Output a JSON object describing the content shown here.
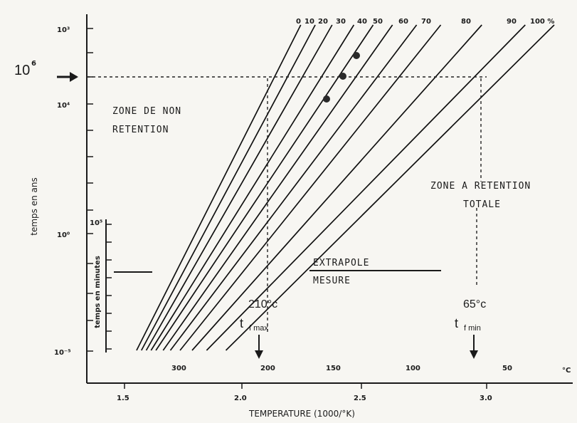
{
  "chart_data": {
    "type": "line",
    "x_axis": {
      "label": "TEMPERATURE (1000/°K)",
      "ticks": [
        "1.5",
        "2.0",
        "2.5",
        "3.0"
      ],
      "range": [
        1.4,
        3.3
      ]
    },
    "x_axis_top_scale": {
      "unit": "°C",
      "ticks": [
        "300",
        "200",
        "150",
        "100",
        "50"
      ]
    },
    "y_axis_left": {
      "label": "temps en ans",
      "scale": "log",
      "ticks": [
        "10³",
        "10⁴",
        "10⁰",
        "10⁻⁵"
      ]
    },
    "y_axis_inner": {
      "label": "temps en minutes",
      "ticks": [
        "10⁵"
      ]
    },
    "series_labels": [
      "0",
      "10",
      "20",
      "30",
      "40",
      "50",
      "60",
      "70",
      "80",
      "90",
      "100 %"
    ],
    "series_endpoints_x": [
      1.55,
      1.57,
      1.59,
      1.61,
      1.63,
      1.66,
      1.69,
      1.73,
      1.78,
      1.84,
      1.92
    ],
    "series_top_x": [
      2.23,
      2.29,
      2.36,
      2.45,
      2.53,
      2.61,
      2.71,
      2.81,
      2.98,
      3.16,
      3.28
    ],
    "points": [
      {
        "x": 2.37,
        "y_log_years": 4.0
      },
      {
        "x": 2.41,
        "y_log_years": 4.75
      },
      {
        "x": 2.46,
        "y_log_years": 5.8
      }
    ],
    "annotations": {
      "zone_non_retention": [
        "ZONE DE NON",
        "RETENTION"
      ],
      "zone_retention_totale": [
        "ZONE A RETENTION",
        "TOTALE"
      ],
      "extrapole": "EXTRAPOLE",
      "mesure": "MESURE",
      "marker_10_6": "10",
      "marker_10_6_exp": "6",
      "t_max_temp": "210°c",
      "t_max_symbol": "t",
      "t_max_sub": "f max",
      "t_min_temp": "65°c",
      "t_min_symbol": "t",
      "t_min_sub": "f min"
    }
  }
}
